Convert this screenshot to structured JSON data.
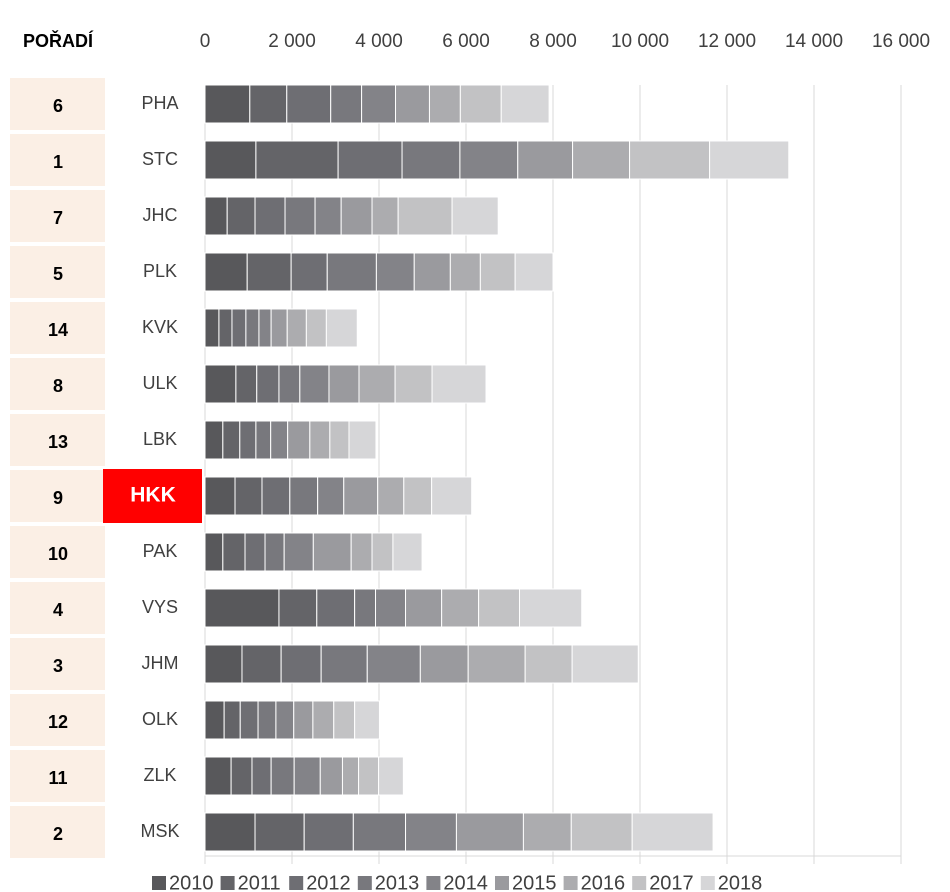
{
  "chart_data": {
    "type": "stacked-bar-horizontal",
    "rank_header": "POŘADÍ",
    "ranks": [
      6,
      1,
      7,
      5,
      14,
      8,
      13,
      9,
      10,
      4,
      3,
      12,
      11,
      2
    ],
    "categories": [
      "PHA",
      "STC",
      "JHC",
      "PLK",
      "KVK",
      "ULK",
      "LBK",
      "HKK",
      "PAK",
      "VYS",
      "JHM",
      "OLK",
      "ZLK",
      "MSK"
    ],
    "highlight": {
      "category": "HKK",
      "color": "#ff0000"
    },
    "xlim": [
      0,
      16000
    ],
    "xticks": [
      0,
      {
        "value": 2000,
        "label": "2 000"
      },
      {
        "value": 4000,
        "label": "4 000"
      },
      {
        "value": 6000,
        "label": "6 000"
      },
      {
        "value": 8000,
        "label": "8 000"
      },
      {
        "value": 10000,
        "label": "10 000"
      },
      {
        "value": 12000,
        "label": "12 000"
      },
      {
        "value": 14000,
        "label": "14 000"
      },
      {
        "value": 16000,
        "label": "16 000"
      }
    ],
    "grid": true,
    "series": [
      {
        "name": "2010",
        "color": "#58585b",
        "values": [
          1030,
          1170,
          510,
          970,
          320,
          710,
          410,
          690,
          410,
          1700,
          850,
          440,
          600,
          1150
        ]
      },
      {
        "name": "2011",
        "color": "#646468",
        "values": [
          850,
          1890,
          640,
          1010,
          300,
          480,
          390,
          620,
          510,
          870,
          900,
          370,
          480,
          1130
        ]
      },
      {
        "name": "2012",
        "color": "#6e6e73",
        "values": [
          1010,
          1470,
          690,
          830,
          320,
          510,
          370,
          640,
          460,
          870,
          920,
          410,
          440,
          1130
        ]
      },
      {
        "name": "2013",
        "color": "#78787d",
        "values": [
          710,
          1330,
          690,
          1130,
          300,
          480,
          340,
          640,
          440,
          480,
          1060,
          410,
          530,
          1200
        ]
      },
      {
        "name": "2014",
        "color": "#838388",
        "values": [
          780,
          1330,
          600,
          870,
          280,
          670,
          390,
          600,
          670,
          690,
          1220,
          410,
          600,
          1170
        ]
      },
      {
        "name": "2015",
        "color": "#9a9a9e",
        "values": [
          780,
          1260,
          710,
          830,
          370,
          690,
          510,
          780,
          870,
          830,
          1100,
          440,
          510,
          1540
        ]
      },
      {
        "name": "2016",
        "color": "#acacaf",
        "values": [
          710,
          1310,
          600,
          690,
          440,
          830,
          460,
          600,
          480,
          850,
          1310,
          480,
          370,
          1100
        ]
      },
      {
        "name": "2017",
        "color": "#c2c2c4",
        "values": [
          940,
          1840,
          1240,
          800,
          460,
          850,
          440,
          640,
          480,
          940,
          1080,
          480,
          460,
          1400
        ]
      },
      {
        "name": "2018",
        "color": "#d6d6d8",
        "values": [
          1100,
          1820,
          1060,
          870,
          710,
          1240,
          620,
          920,
          670,
          1430,
          1520,
          570,
          570,
          1860
        ]
      }
    ]
  }
}
